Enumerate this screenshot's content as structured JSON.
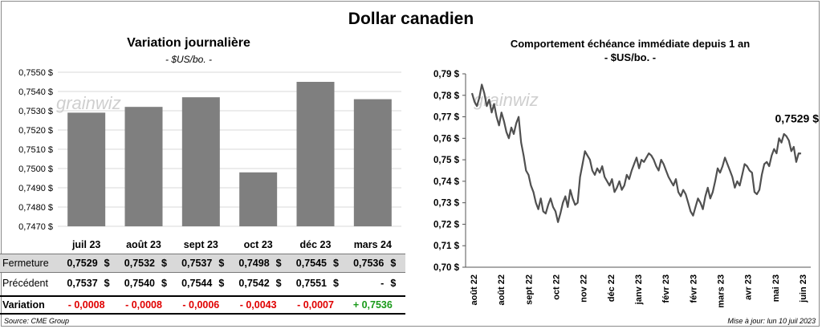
{
  "title": "Dollar canadien",
  "source": "Source: CME Group",
  "updated": "Mise à jour: lun 10 juil 2023",
  "watermark": "grainwiz",
  "colors": {
    "bar": "#7f7f7f",
    "line": "#505050",
    "negative": "#e00000",
    "positive": "#1a9a1a"
  },
  "table": {
    "row_labels": {
      "fermeture": "Fermeture",
      "precedent": "Précédent",
      "variation": "Variation"
    },
    "currency": "$",
    "fermeture": [
      "0,7529",
      "0,7532",
      "0,7537",
      "0,7498",
      "0,7545",
      "0,7536"
    ],
    "precedent": [
      "0,7537",
      "0,7540",
      "0,7544",
      "0,7542",
      "0,7551",
      "-"
    ],
    "variation": [
      "- 0,0008",
      "- 0,0008",
      "- 0,0006",
      "- 0,0043",
      "- 0,0007",
      "+ 0,7536"
    ]
  },
  "chart_data": [
    {
      "type": "bar",
      "title": "Variation  journalière",
      "subtitle": "- $US/bo. -",
      "categories": [
        "juil 23",
        "août 23",
        "sept 23",
        "oct 23",
        "déc 23",
        "mars 24"
      ],
      "values": [
        0.7529,
        0.7532,
        0.7537,
        0.7498,
        0.7545,
        0.7536
      ],
      "ylim": [
        0.747,
        0.755
      ],
      "yticks": [
        "0,7470 $",
        "0,7480 $",
        "0,7490 $",
        "0,7500 $",
        "0,7510 $",
        "0,7520 $",
        "0,7530 $",
        "0,7540 $",
        "0,7550 $"
      ],
      "grid": true
    },
    {
      "type": "line",
      "title": "Comportement échéance immédiate depuis 1 an",
      "subtitle": "- $US/bo. -",
      "x_ticks": [
        "août 22",
        "août 22",
        "sept 22",
        "oct 22",
        "nov 22",
        "déc 22",
        "janv 23",
        "févr 23",
        "févr 23",
        "mars 23",
        "avr 23",
        "mai 23",
        "juin 23"
      ],
      "yticks": [
        "0,70 $",
        "0,71 $",
        "0,72 $",
        "0,73 $",
        "0,74 $",
        "0,75 $",
        "0,76 $",
        "0,77 $",
        "0,78 $",
        "0,79 $"
      ],
      "ylim": [
        0.7,
        0.79
      ],
      "last_value_label": "0,7529 $",
      "values": [
        0.781,
        0.777,
        0.775,
        0.779,
        0.785,
        0.781,
        0.775,
        0.778,
        0.772,
        0.776,
        0.77,
        0.766,
        0.772,
        0.768,
        0.763,
        0.76,
        0.765,
        0.762,
        0.767,
        0.77,
        0.758,
        0.752,
        0.745,
        0.743,
        0.738,
        0.735,
        0.73,
        0.727,
        0.732,
        0.726,
        0.725,
        0.729,
        0.732,
        0.728,
        0.726,
        0.721,
        0.725,
        0.73,
        0.733,
        0.728,
        0.736,
        0.732,
        0.729,
        0.73,
        0.742,
        0.748,
        0.754,
        0.752,
        0.75,
        0.745,
        0.743,
        0.746,
        0.744,
        0.747,
        0.742,
        0.74,
        0.738,
        0.741,
        0.735,
        0.737,
        0.74,
        0.736,
        0.738,
        0.743,
        0.741,
        0.745,
        0.748,
        0.751,
        0.746,
        0.75,
        0.749,
        0.751,
        0.753,
        0.752,
        0.75,
        0.747,
        0.745,
        0.75,
        0.748,
        0.745,
        0.742,
        0.74,
        0.738,
        0.741,
        0.735,
        0.733,
        0.736,
        0.734,
        0.73,
        0.726,
        0.724,
        0.728,
        0.732,
        0.73,
        0.727,
        0.733,
        0.737,
        0.732,
        0.735,
        0.74,
        0.746,
        0.744,
        0.747,
        0.751,
        0.748,
        0.745,
        0.742,
        0.737,
        0.74,
        0.738,
        0.743,
        0.748,
        0.747,
        0.745,
        0.744,
        0.735,
        0.734,
        0.736,
        0.743,
        0.748,
        0.749,
        0.747,
        0.752,
        0.755,
        0.753,
        0.76,
        0.758,
        0.762,
        0.761,
        0.759,
        0.754,
        0.756,
        0.749,
        0.753,
        0.7529
      ]
    }
  ]
}
